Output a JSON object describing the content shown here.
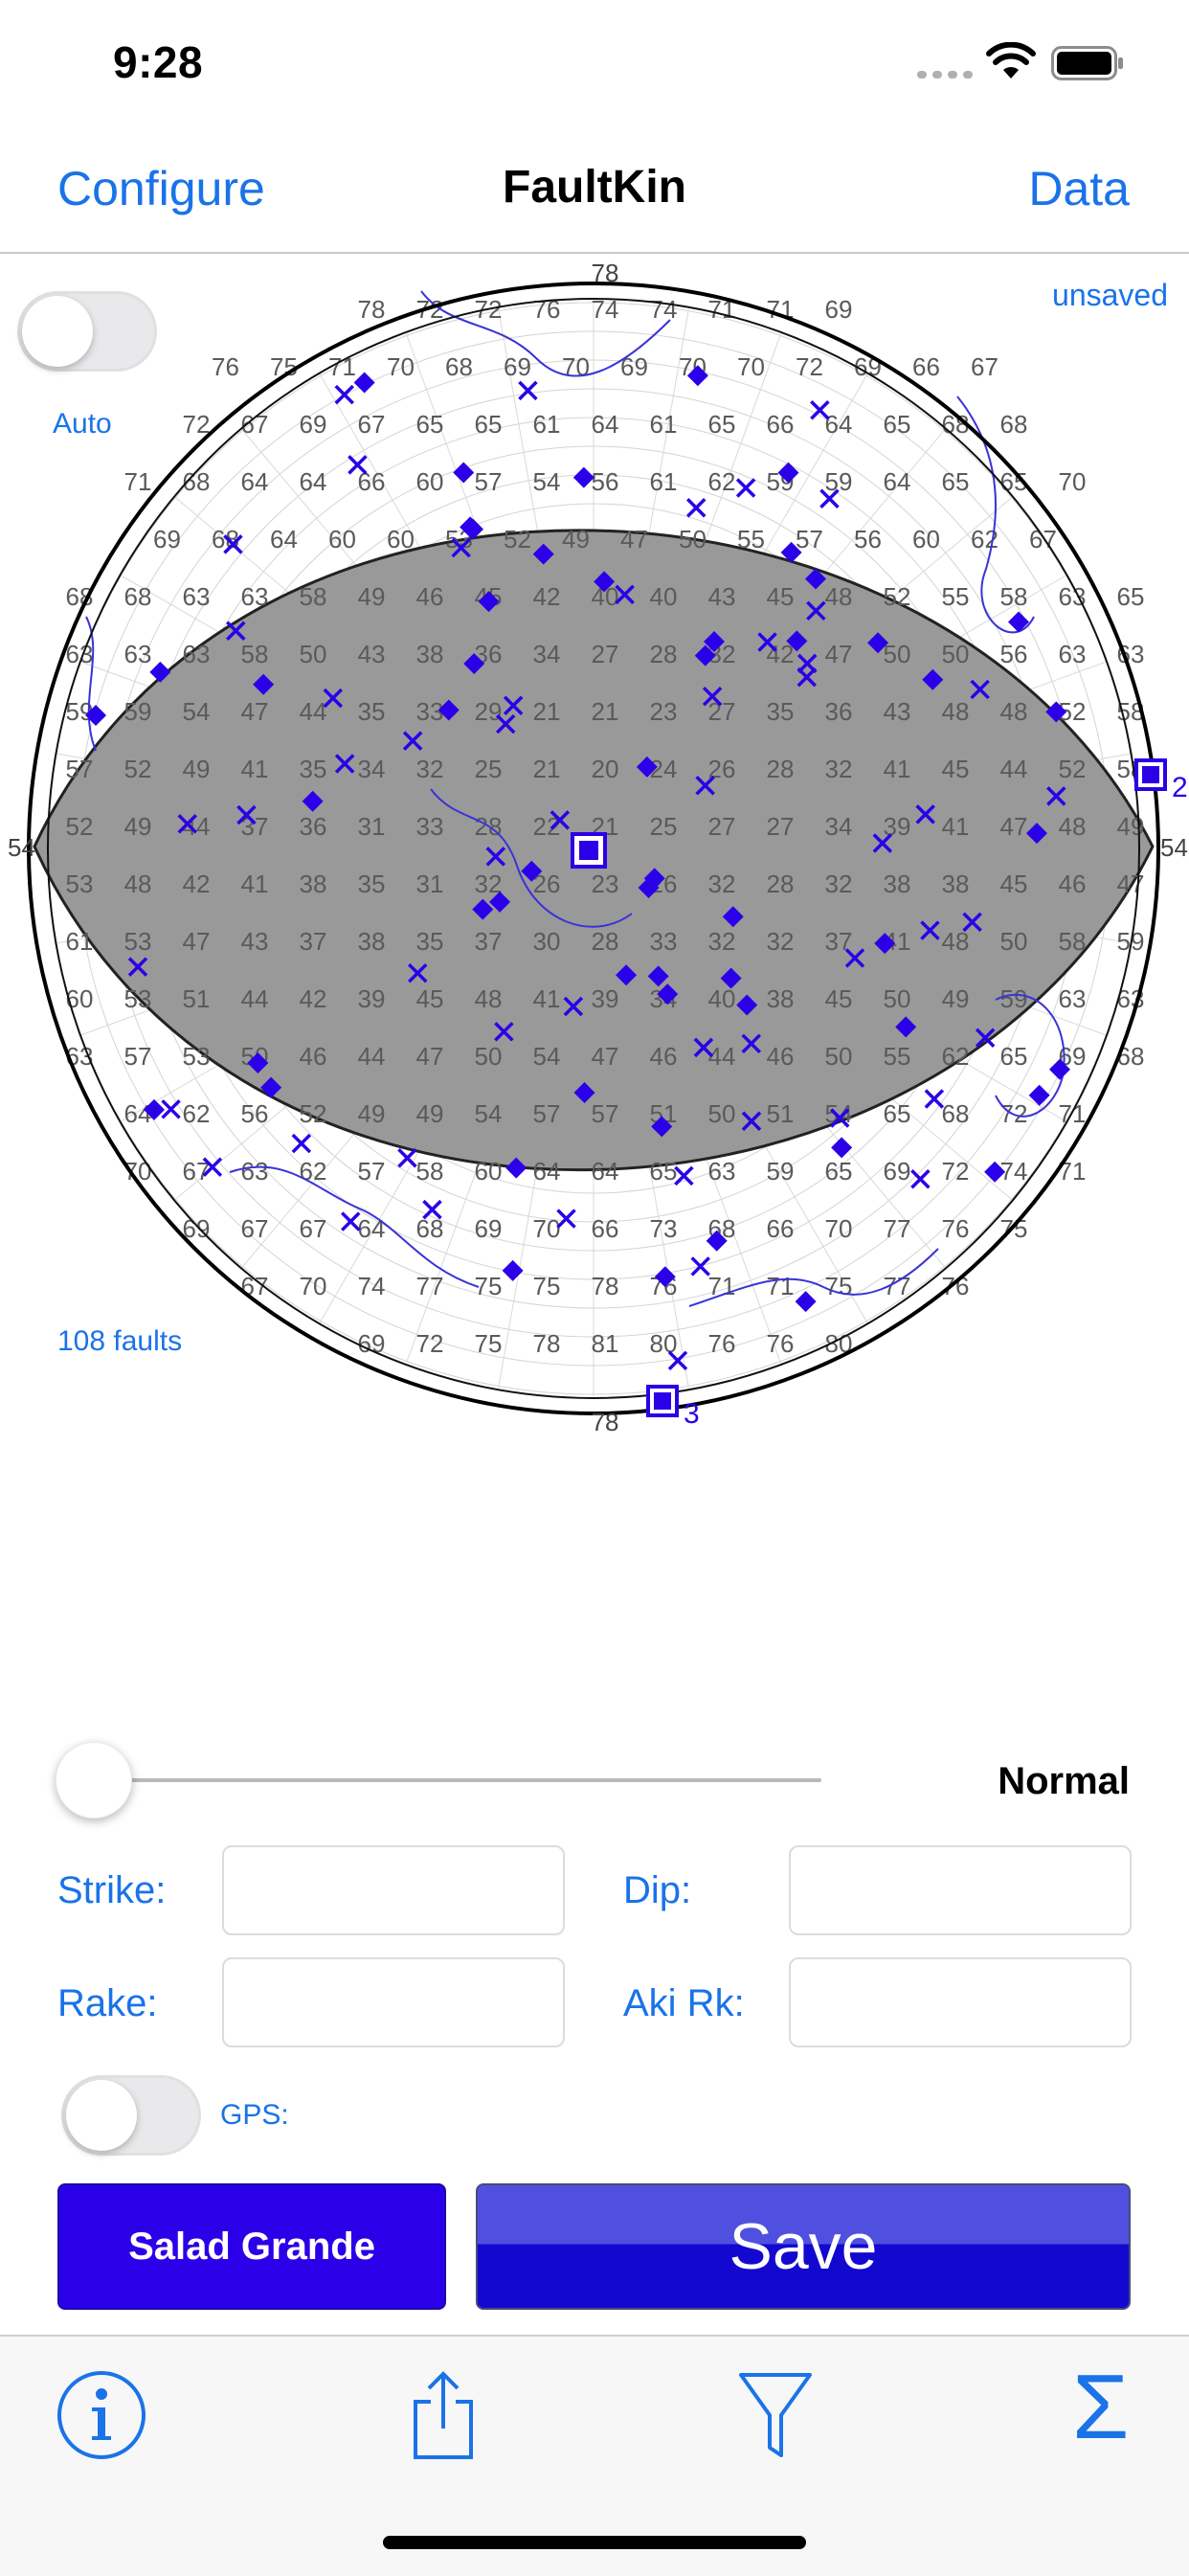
{
  "status_bar": {
    "time": "9:28"
  },
  "nav": {
    "left_button": "Configure",
    "title": "FaultKin",
    "right_button": "Data"
  },
  "overlay": {
    "unsaved": "unsaved",
    "auto_label": "Auto",
    "faults_count": "108 faults"
  },
  "stereonet": {
    "edge_labels": {
      "top": "78",
      "bottom": "78",
      "left": "54",
      "right": "54"
    },
    "axis_labels": {
      "p2": "2",
      "p3": "3"
    },
    "grid_rows": [
      [
        "78",
        "72",
        "72",
        "76",
        "74",
        "74",
        "71",
        "71",
        "69"
      ],
      [
        "76",
        "75",
        "71",
        "70",
        "68",
        "69",
        "70",
        "69",
        "70",
        "70",
        "72",
        "69",
        "66",
        "67"
      ],
      [
        "72",
        "67",
        "69",
        "67",
        "65",
        "65",
        "61",
        "64",
        "61",
        "65",
        "66",
        "64",
        "65",
        "68",
        "68"
      ],
      [
        "71",
        "68",
        "64",
        "64",
        "66",
        "60",
        "57",
        "54",
        "56",
        "61",
        "62",
        "59",
        "59",
        "64",
        "65",
        "65",
        "70"
      ],
      [
        "69",
        "68",
        "64",
        "60",
        "60",
        "53",
        "52",
        "49",
        "47",
        "50",
        "55",
        "57",
        "56",
        "60",
        "62",
        "67"
      ],
      [
        "68",
        "68",
        "63",
        "63",
        "58",
        "49",
        "46",
        "45",
        "42",
        "40",
        "40",
        "43",
        "45",
        "48",
        "52",
        "55",
        "58",
        "63",
        "65"
      ],
      [
        "63",
        "63",
        "63",
        "58",
        "50",
        "43",
        "38",
        "36",
        "34",
        "27",
        "28",
        "32",
        "42",
        "47",
        "50",
        "50",
        "56",
        "63",
        "63"
      ],
      [
        "59",
        "59",
        "54",
        "47",
        "44",
        "35",
        "33",
        "29",
        "21",
        "21",
        "23",
        "27",
        "35",
        "36",
        "43",
        "48",
        "48",
        "52",
        "58"
      ],
      [
        "57",
        "52",
        "49",
        "41",
        "35",
        "34",
        "32",
        "25",
        "21",
        "20",
        "24",
        "26",
        "28",
        "32",
        "41",
        "45",
        "44",
        "52",
        "58"
      ],
      [
        "52",
        "49",
        "44",
        "37",
        "36",
        "31",
        "33",
        "28",
        "22",
        "21",
        "25",
        "27",
        "27",
        "34",
        "39",
        "41",
        "47",
        "48",
        "49"
      ],
      [
        "53",
        "48",
        "42",
        "41",
        "38",
        "35",
        "31",
        "32",
        "26",
        "23",
        "26",
        "32",
        "28",
        "32",
        "38",
        "38",
        "45",
        "46",
        "47"
      ],
      [
        "61",
        "53",
        "47",
        "43",
        "37",
        "38",
        "35",
        "37",
        "30",
        "28",
        "33",
        "32",
        "32",
        "37",
        "41",
        "48",
        "50",
        "58",
        "59"
      ],
      [
        "60",
        "53",
        "51",
        "44",
        "42",
        "39",
        "45",
        "48",
        "41",
        "39",
        "34",
        "40",
        "38",
        "45",
        "50",
        "49",
        "59",
        "63",
        "63"
      ],
      [
        "63",
        "57",
        "53",
        "50",
        "46",
        "44",
        "47",
        "50",
        "54",
        "47",
        "46",
        "44",
        "46",
        "50",
        "55",
        "62",
        "65",
        "69",
        "68"
      ],
      [
        "64",
        "62",
        "56",
        "52",
        "49",
        "49",
        "54",
        "57",
        "57",
        "51",
        "50",
        "51",
        "54",
        "65",
        "68",
        "72",
        "71"
      ],
      [
        "70",
        "67",
        "63",
        "62",
        "57",
        "58",
        "60",
        "64",
        "64",
        "65",
        "63",
        "59",
        "65",
        "69",
        "72",
        "74",
        "71"
      ],
      [
        "69",
        "67",
        "67",
        "64",
        "68",
        "69",
        "70",
        "66",
        "73",
        "68",
        "66",
        "70",
        "77",
        "76",
        "75"
      ],
      [
        "67",
        "70",
        "74",
        "77",
        "75",
        "75",
        "78",
        "76",
        "71",
        "71",
        "75",
        "77",
        "76"
      ],
      [
        "69",
        "72",
        "75",
        "78",
        "81",
        "80",
        "76",
        "76",
        "80"
      ]
    ]
  },
  "controls": {
    "slider_value": 0.0,
    "mode_label": "Normal",
    "strike_label": "Strike:",
    "dip_label": "Dip:",
    "rake_label": "Rake:",
    "aki_label": "Aki Rk:",
    "strike_value": "",
    "dip_value": "",
    "rake_value": "",
    "aki_value": "",
    "gps_label": "GPS:",
    "salad_button": "Salad Grande",
    "save_button": "Save"
  },
  "colors": {
    "accent": "#1a73e8",
    "marker": "#2b00e8",
    "plane_fill": "#999999"
  },
  "tabbar": {
    "icons": [
      "info-icon",
      "share-icon",
      "filter-icon",
      "sigma-icon"
    ],
    "sigma_glyph": "Σ"
  }
}
